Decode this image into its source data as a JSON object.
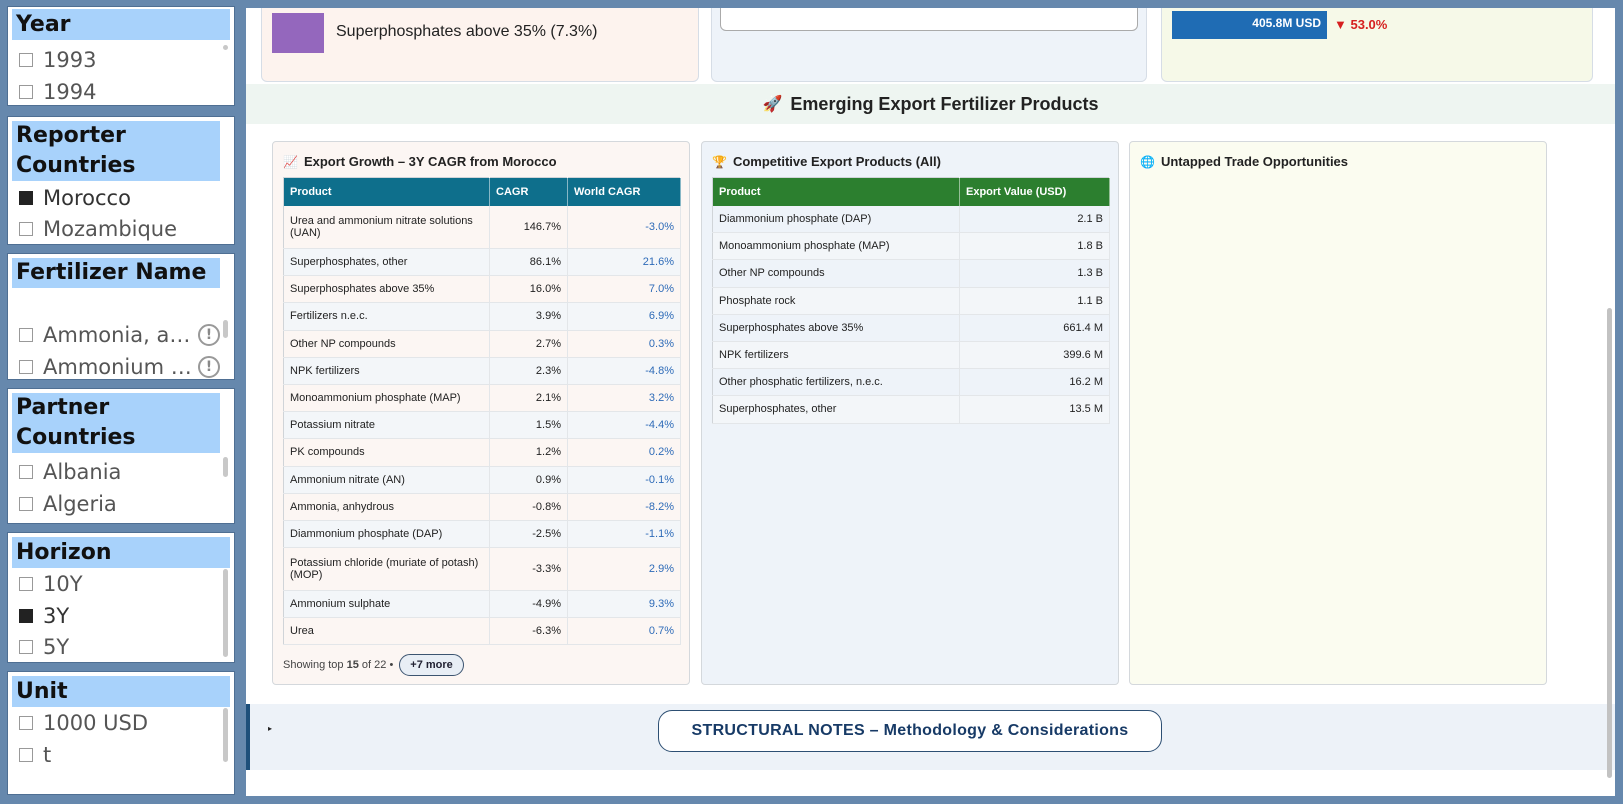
{
  "slicers": {
    "year": {
      "title": "Year",
      "items": [
        {
          "label": "1993",
          "checked": false
        },
        {
          "label": "1994",
          "checked": false
        }
      ]
    },
    "reporter": {
      "title": "Reporter Countries",
      "items": [
        {
          "label": "Morocco",
          "checked": true
        },
        {
          "label": "Mozambique",
          "checked": false
        }
      ]
    },
    "fertilizer": {
      "title": "Fertilizer Name",
      "items": [
        {
          "label": "Ammonia, an...",
          "checked": false
        },
        {
          "label": "Ammonium n...",
          "checked": false
        }
      ],
      "warn_icon": "!"
    },
    "partner": {
      "title": "Partner Countries",
      "items": [
        {
          "label": "Albania",
          "checked": false
        },
        {
          "label": "Algeria",
          "checked": false
        }
      ]
    },
    "horizon": {
      "title": "Horizon",
      "items": [
        {
          "label": "10Y",
          "checked": false
        },
        {
          "label": "3Y",
          "checked": true
        },
        {
          "label": "5Y",
          "checked": false
        }
      ]
    },
    "unit": {
      "title": "Unit",
      "items": [
        {
          "label": "1000 USD",
          "checked": false
        },
        {
          "label": "t",
          "checked": false
        }
      ]
    }
  },
  "top_cards": {
    "card1": {
      "label": "Superphosphates above 35% (7.3%)",
      "swatch_color": "#9467bd"
    },
    "card3": {
      "value": "405.8M USD",
      "delta": "▼ 53.0%",
      "delta_color": "#d62020"
    }
  },
  "section": {
    "title": "Emerging Export Fertilizer Products",
    "icon": "rocket-icon"
  },
  "panels": {
    "growth": {
      "title": "Export Growth – 3Y CAGR from Morocco",
      "headers": [
        "Product",
        "CAGR",
        "World CAGR"
      ],
      "rows": [
        [
          "Urea and ammonium nitrate solutions (UAN)",
          "146.7%",
          "-3.0%"
        ],
        [
          "Superphosphates, other",
          "86.1%",
          "21.6%"
        ],
        [
          "Superphosphates above 35%",
          "16.0%",
          "7.0%"
        ],
        [
          "Fertilizers n.e.c.",
          "3.9%",
          "6.9%"
        ],
        [
          "Other NP compounds",
          "2.7%",
          "0.3%"
        ],
        [
          "NPK fertilizers",
          "2.3%",
          "-4.8%"
        ],
        [
          "Monoammonium phosphate (MAP)",
          "2.1%",
          "3.2%"
        ],
        [
          "Potassium nitrate",
          "1.5%",
          "-4.4%"
        ],
        [
          "PK compounds",
          "1.2%",
          "0.2%"
        ],
        [
          "Ammonium nitrate (AN)",
          "0.9%",
          "-0.1%"
        ],
        [
          "Ammonia, anhydrous",
          "-0.8%",
          "-8.2%"
        ],
        [
          "Diammonium phosphate (DAP)",
          "-2.5%",
          "-1.1%"
        ],
        [
          "Potassium chloride (muriate of potash) (MOP)",
          "-3.3%",
          "2.9%"
        ],
        [
          "Ammonium sulphate",
          "-4.9%",
          "9.3%"
        ],
        [
          "Urea",
          "-6.3%",
          "0.7%"
        ]
      ],
      "showing_prefix": "Showing top",
      "showing_count": "15",
      "showing_suffix": "of 22 •",
      "more_label": "+7 more"
    },
    "competitive": {
      "title": "Competitive Export Products (All)",
      "headers": [
        "Product",
        "Export Value (USD)"
      ],
      "rows": [
        [
          "Diammonium phosphate (DAP)",
          "2.1 B"
        ],
        [
          "Monoammonium phosphate (MAP)",
          "1.8 B"
        ],
        [
          "Other NP compounds",
          "1.3 B"
        ],
        [
          "Phosphate rock",
          "1.1 B"
        ],
        [
          "Superphosphates above 35%",
          "661.4 M"
        ],
        [
          "NPK fertilizers",
          "399.6 M"
        ],
        [
          "Other phosphatic fertilizers, n.e.c.",
          "16.2 M"
        ],
        [
          "Superphosphates, other",
          "13.5 M"
        ]
      ]
    },
    "untapped": {
      "title": "Untapped Trade Opportunities"
    }
  },
  "notes": {
    "button_label": "STRUCTURAL NOTES – Methodology & Considerations",
    "caret": "▸"
  }
}
